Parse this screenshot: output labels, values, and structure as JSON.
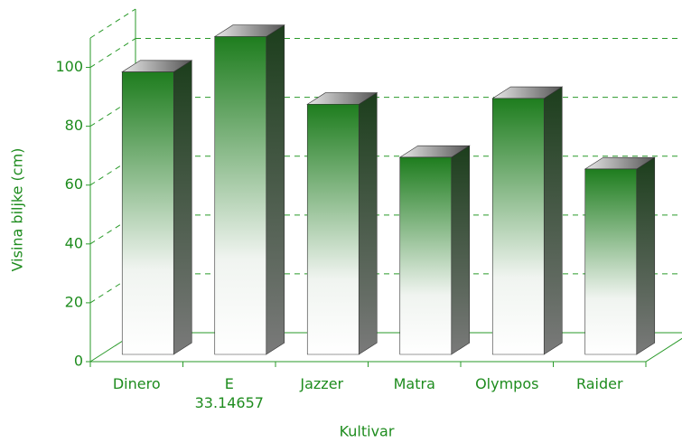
{
  "chart_data": {
    "type": "bar3d",
    "x_label": "Kultivar",
    "y_label": "Visina biljke (cm)",
    "categories": [
      "Dinero",
      "E 33.14657",
      "Jazzer",
      "Matra",
      "Olympos",
      "Raider"
    ],
    "values": [
      96,
      108,
      85,
      67,
      87,
      63
    ],
    "color": "#1e7d1e",
    "ylim": [
      0,
      110
    ],
    "yticks": [
      0,
      20,
      40,
      60,
      80,
      100
    ],
    "grid": true
  }
}
